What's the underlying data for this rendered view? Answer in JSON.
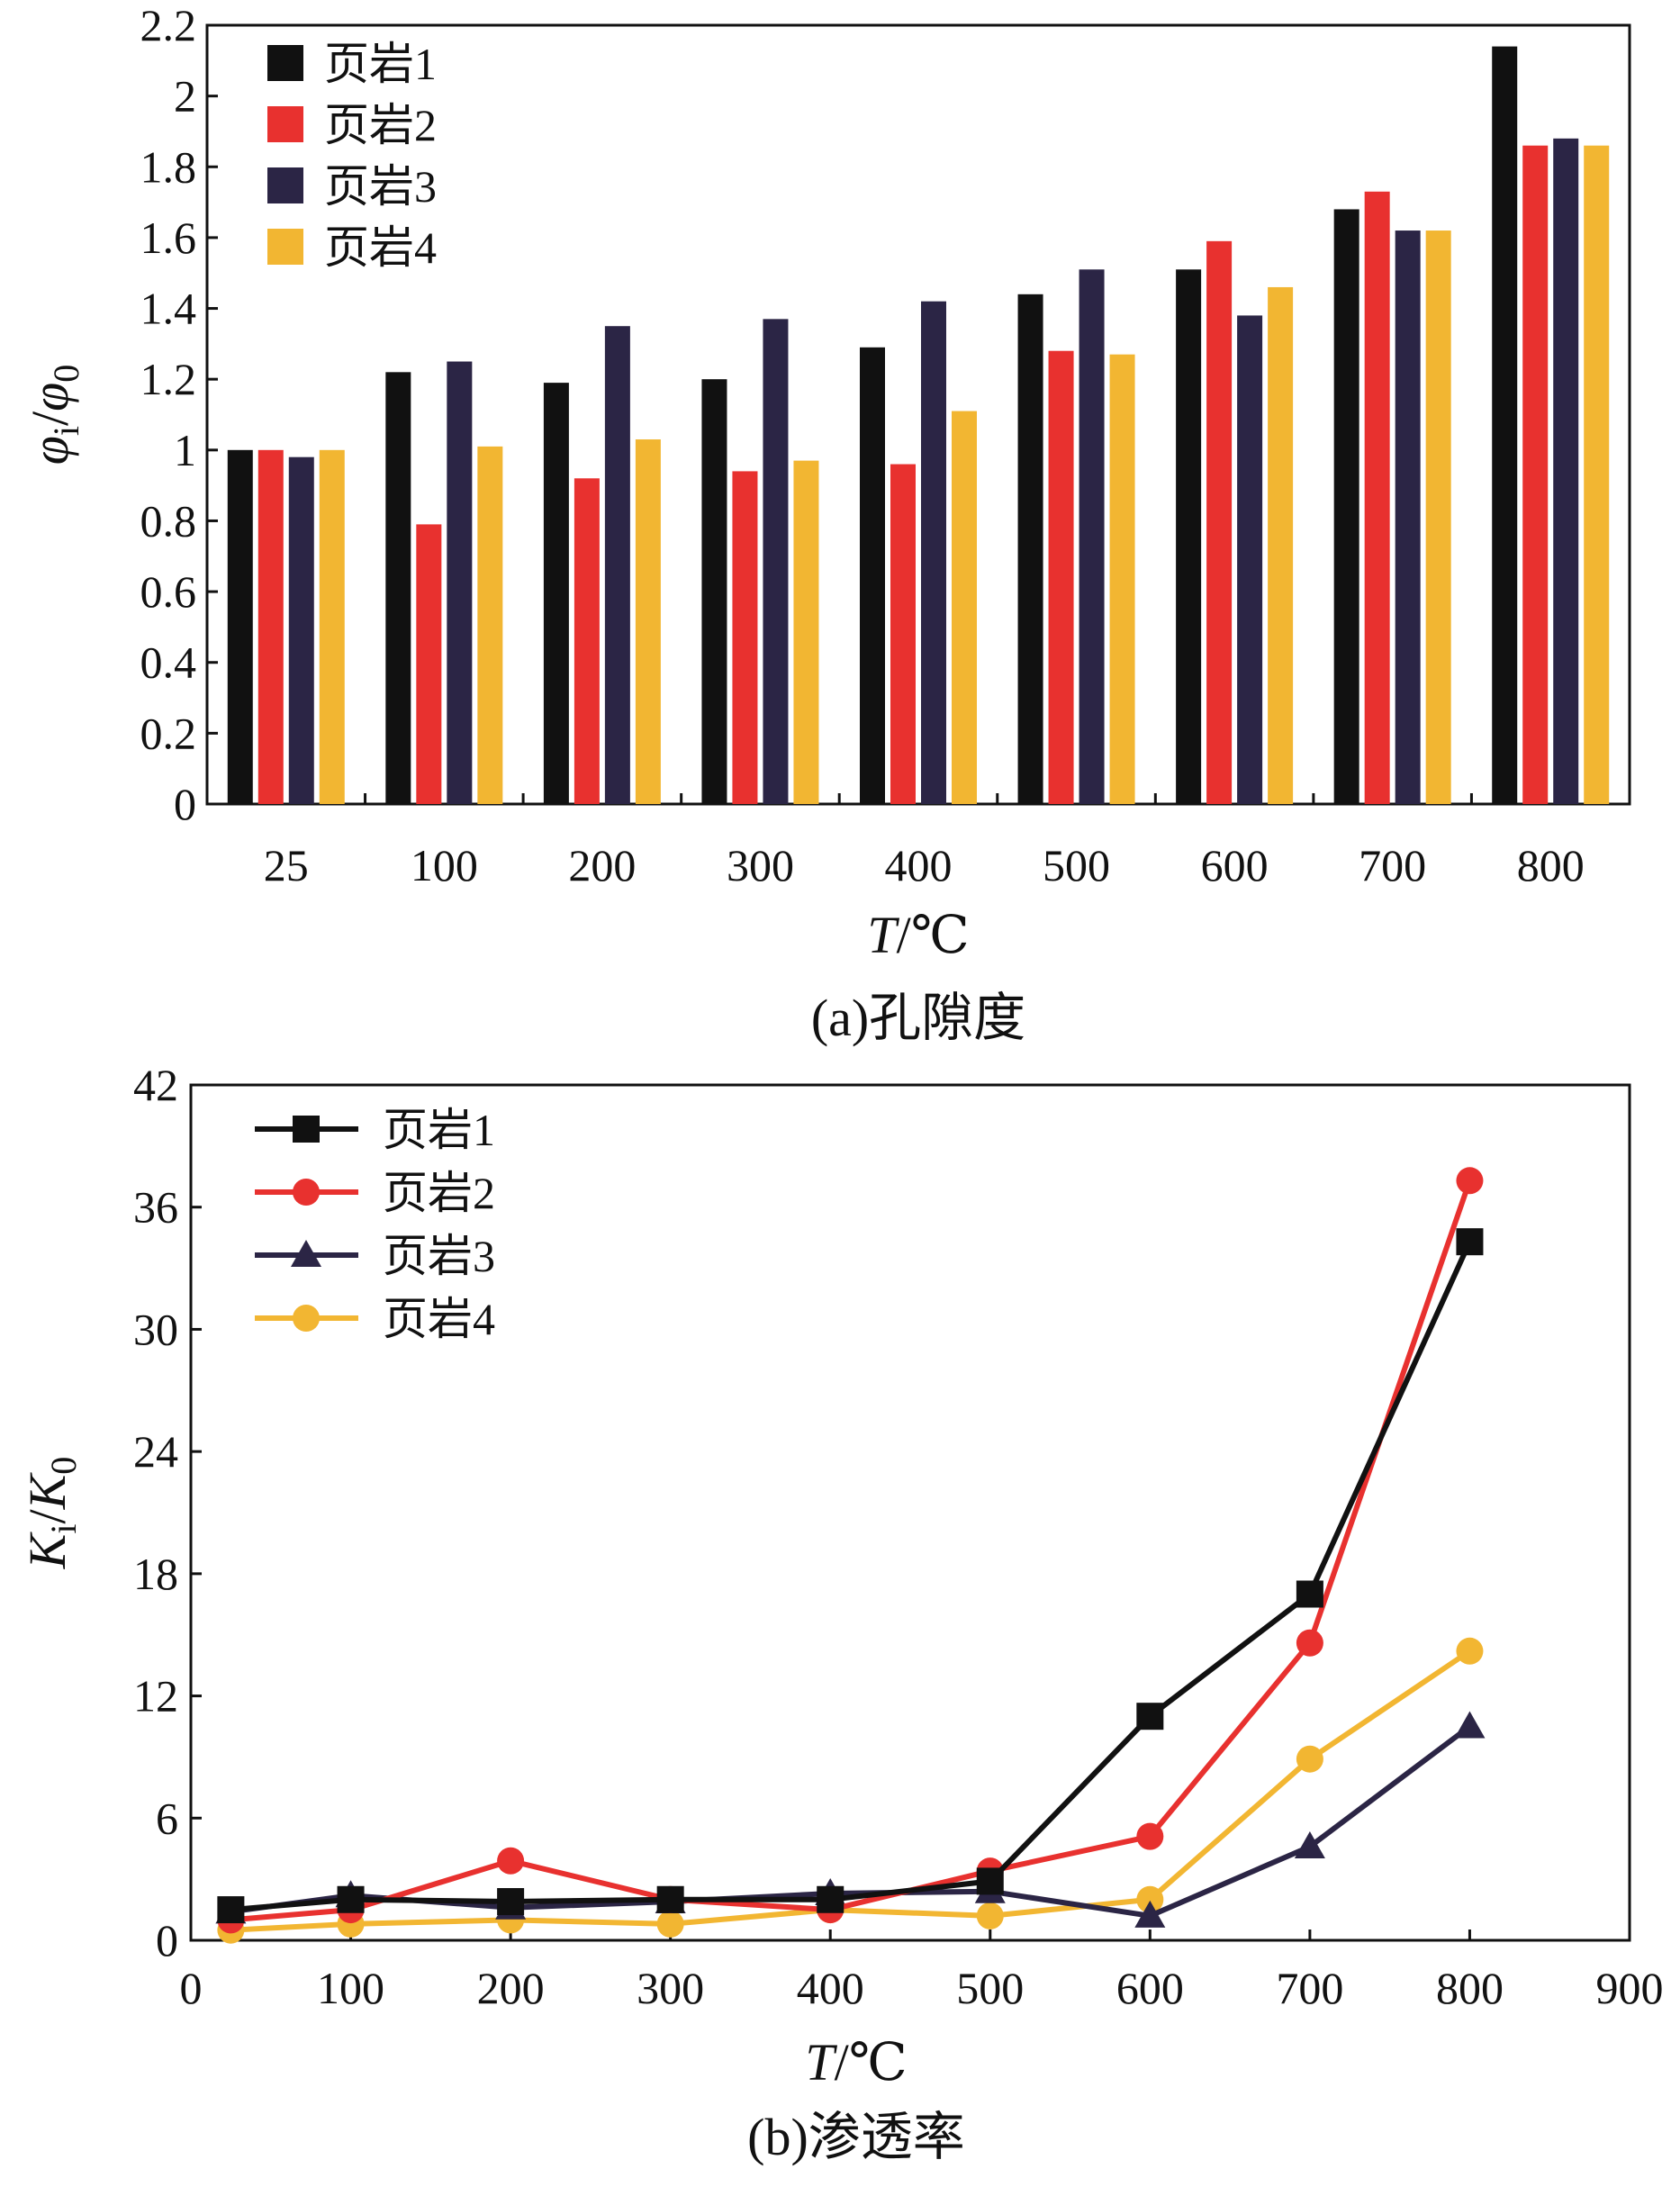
{
  "colors": {
    "shale1": "#111111",
    "shale2": "#e8312f",
    "shale3": "#2b2545",
    "shale4": "#f2b632"
  },
  "chart_data": [
    {
      "type": "bar",
      "caption": "(a)孔隙度",
      "xlabel": "T/℃",
      "ylabel": "φi/φ0",
      "ylim": [
        0,
        2.2
      ],
      "yticks": [
        "0",
        "0.2",
        "0.4",
        "0.6",
        "0.8",
        "1",
        "1.2",
        "1.4",
        "1.6",
        "1.8",
        "2",
        "2.2"
      ],
      "categories": [
        "25",
        "100",
        "200",
        "300",
        "400",
        "500",
        "600",
        "700",
        "800"
      ],
      "legend_position": "top-left",
      "series": [
        {
          "name": "页岩1",
          "values": [
            1.0,
            1.22,
            1.19,
            1.2,
            1.29,
            1.44,
            1.51,
            1.68,
            2.14
          ]
        },
        {
          "name": "页岩2",
          "values": [
            1.0,
            0.79,
            0.92,
            0.94,
            0.96,
            1.28,
            1.59,
            1.73,
            1.86
          ]
        },
        {
          "name": "页岩3",
          "values": [
            0.98,
            1.25,
            1.35,
            1.37,
            1.42,
            1.51,
            1.38,
            1.62,
            1.88
          ]
        },
        {
          "name": "页岩4",
          "values": [
            1.0,
            1.01,
            1.03,
            0.97,
            1.11,
            1.27,
            1.46,
            1.62,
            1.86
          ]
        }
      ]
    },
    {
      "type": "line",
      "caption": "(b)渗透率",
      "xlabel": "T/℃",
      "ylabel": "Ki/K0",
      "xlim": [
        0,
        900
      ],
      "ylim": [
        0,
        42
      ],
      "xticks": [
        "0",
        "100",
        "200",
        "300",
        "400",
        "500",
        "600",
        "700",
        "800",
        "900"
      ],
      "yticks": [
        "0",
        "6",
        "12",
        "18",
        "24",
        "30",
        "36",
        "42"
      ],
      "x": [
        25,
        100,
        200,
        300,
        400,
        500,
        600,
        700,
        800
      ],
      "legend_position": "top-left",
      "series": [
        {
          "name": "页岩1",
          "marker": "square",
          "values": [
            1.5,
            2.0,
            1.9,
            2.0,
            2.0,
            2.9,
            11.0,
            17.0,
            34.3
          ]
        },
        {
          "name": "页岩2",
          "marker": "circle",
          "values": [
            1.0,
            1.5,
            3.9,
            2.0,
            1.5,
            3.4,
            5.1,
            14.6,
            37.3
          ]
        },
        {
          "name": "页岩3",
          "marker": "triangle",
          "values": [
            1.4,
            2.2,
            1.6,
            1.9,
            2.3,
            2.4,
            1.2,
            4.6,
            10.5
          ]
        },
        {
          "name": "页岩4",
          "marker": "circle",
          "values": [
            0.5,
            0.8,
            1.0,
            0.8,
            1.5,
            1.2,
            2.0,
            8.9,
            14.2
          ]
        }
      ]
    }
  ]
}
